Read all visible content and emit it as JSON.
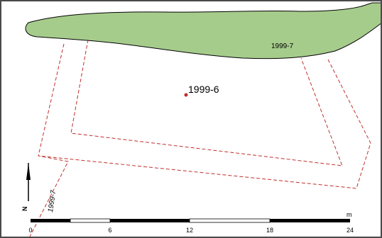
{
  "map": {
    "point_label": "1999-6",
    "green_feature_label": "1999-7",
    "rotated_feature_label": "1999-7",
    "north_label": "N",
    "colors": {
      "green_fill": "#a6cc8c",
      "dashed_outline": "#c0302c",
      "point_fill": "#c0302c",
      "frame": "#4a4a4a",
      "scalebar": "#000000"
    }
  },
  "scalebar": {
    "unit": "m",
    "ticks": [
      "0",
      "6",
      "12",
      "18",
      "24"
    ]
  }
}
